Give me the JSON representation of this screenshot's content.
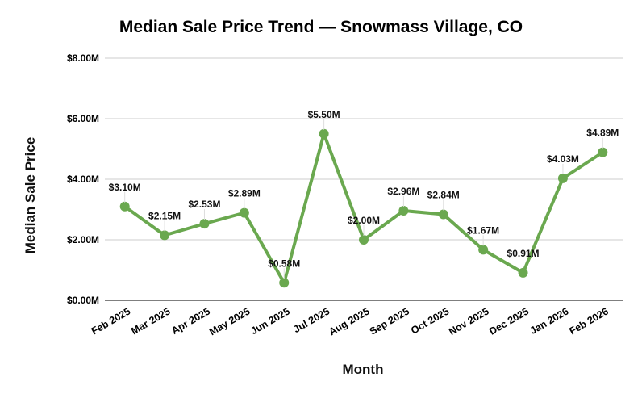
{
  "chart_data": {
    "type": "line",
    "title": "Median Sale Price Trend — Snowmass Village, CO",
    "xlabel": "Month",
    "ylabel": "Median Sale Price",
    "categories": [
      "Feb 2025",
      "Mar 2025",
      "Apr 2025",
      "May 2025",
      "Jun 2025",
      "Jul 2025",
      "Aug 2025",
      "Sep 2025",
      "Oct 2025",
      "Nov 2025",
      "Dec 2025",
      "Jan 2026",
      "Feb 2026"
    ],
    "series": [
      {
        "name": "Median Sale Price",
        "values": [
          3.1,
          2.15,
          2.53,
          2.89,
          0.58,
          5.5,
          2.0,
          2.96,
          2.84,
          1.67,
          0.91,
          4.03,
          4.89
        ],
        "labels": [
          "$3.10M",
          "$2.15M",
          "$2.53M",
          "$2.89M",
          "$0.58M",
          "$5.50M",
          "$2.00M",
          "$2.96M",
          "$2.84M",
          "$1.67M",
          "$0.91M",
          "$4.03M",
          "$4.89M"
        ],
        "color": "#6aa84f"
      }
    ],
    "yticks": [
      0,
      2,
      4,
      6,
      8
    ],
    "ytick_labels": [
      "$0.00M",
      "$2.00M",
      "$4.00M",
      "$6.00M",
      "$8.00M"
    ],
    "ylim": [
      0,
      8
    ],
    "units": "millions USD",
    "grid": true,
    "legend": "none"
  },
  "colors": {
    "line": "#6aa84f",
    "grid": "#cccccc",
    "axis": "#333333"
  }
}
